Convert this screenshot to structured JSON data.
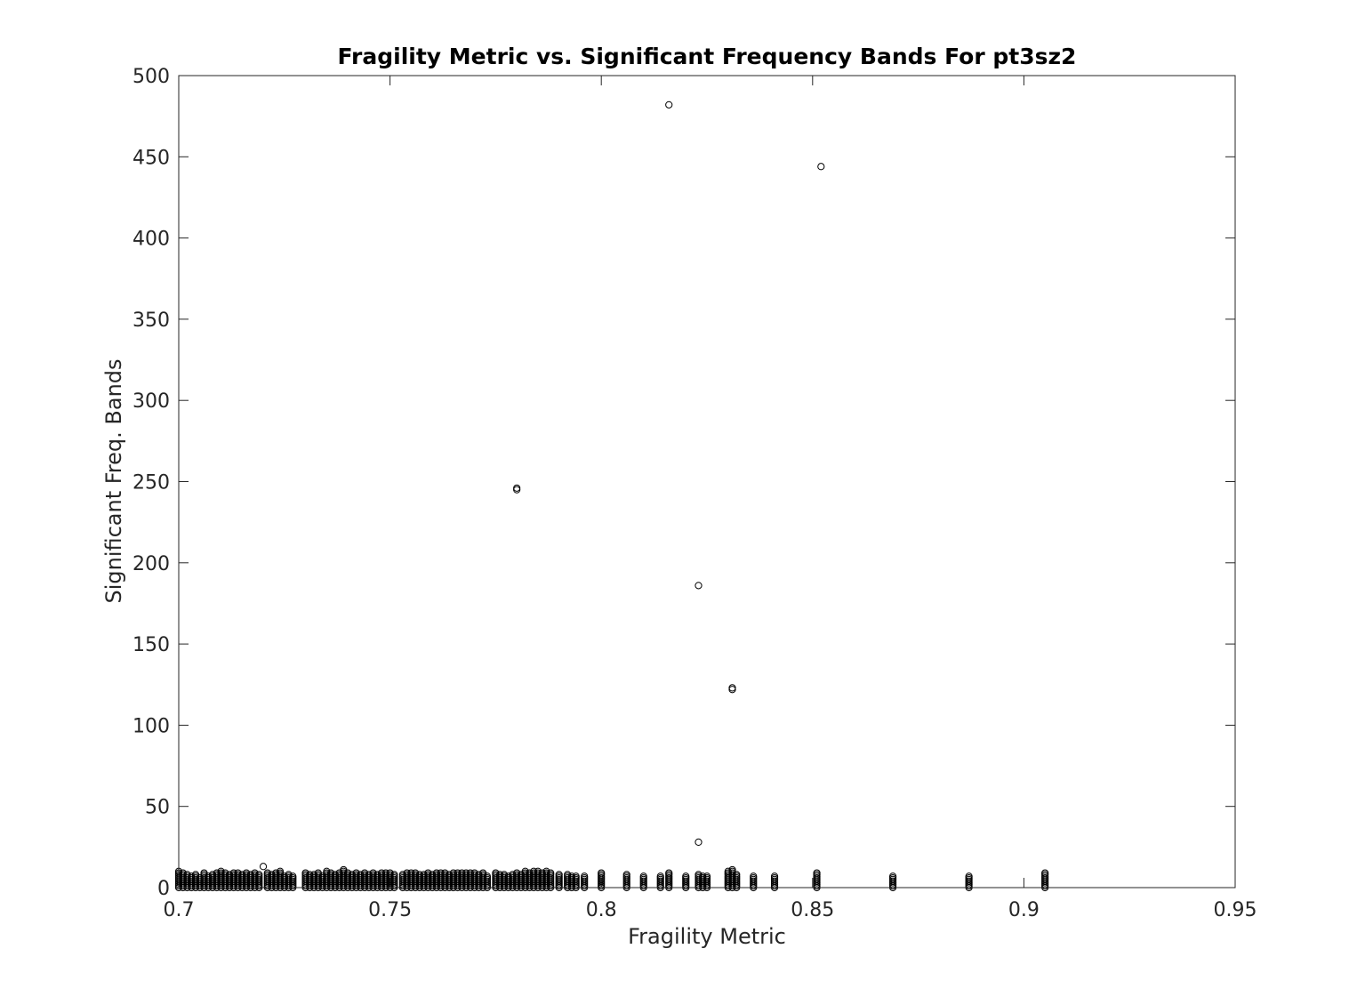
{
  "chart_data": {
    "type": "scatter",
    "title": "Fragility Metric vs. Significant Frequency Bands For pt3sz2",
    "xlabel": "Fragility Metric",
    "ylabel": "Significant Freq. Bands",
    "xlim": [
      0.7,
      0.95
    ],
    "ylim": [
      0,
      500
    ],
    "xticks": [
      0.7,
      0.75,
      0.8,
      0.85,
      0.9,
      0.95
    ],
    "xtick_labels": [
      "0.7",
      "0.75",
      "0.8",
      "0.85",
      "0.9",
      "0.95"
    ],
    "yticks": [
      0,
      50,
      100,
      150,
      200,
      250,
      300,
      350,
      400,
      450,
      500
    ],
    "ytick_labels": [
      "0",
      "50",
      "100",
      "150",
      "200",
      "250",
      "300",
      "350",
      "400",
      "450",
      "500"
    ],
    "grid": false,
    "legend": "none",
    "marker": "open-circle",
    "marker_color": "#000000",
    "outliers": [
      {
        "x": 0.816,
        "y": 482
      },
      {
        "x": 0.852,
        "y": 444
      },
      {
        "x": 0.78,
        "y": 246
      },
      {
        "x": 0.78,
        "y": 245
      },
      {
        "x": 0.823,
        "y": 186
      },
      {
        "x": 0.831,
        "y": 123
      },
      {
        "x": 0.831,
        "y": 122
      },
      {
        "x": 0.823,
        "y": 28
      },
      {
        "x": 0.72,
        "y": 13
      }
    ],
    "low_band_columns": [
      {
        "x": 0.7,
        "ymax": 10
      },
      {
        "x": 0.701,
        "ymax": 9
      },
      {
        "x": 0.702,
        "ymax": 8
      },
      {
        "x": 0.703,
        "ymax": 7
      },
      {
        "x": 0.704,
        "ymax": 8
      },
      {
        "x": 0.705,
        "ymax": 6
      },
      {
        "x": 0.706,
        "ymax": 9
      },
      {
        "x": 0.707,
        "ymax": 7
      },
      {
        "x": 0.708,
        "ymax": 8
      },
      {
        "x": 0.709,
        "ymax": 9
      },
      {
        "x": 0.71,
        "ymax": 10
      },
      {
        "x": 0.711,
        "ymax": 9
      },
      {
        "x": 0.712,
        "ymax": 8
      },
      {
        "x": 0.713,
        "ymax": 9
      },
      {
        "x": 0.714,
        "ymax": 9
      },
      {
        "x": 0.715,
        "ymax": 8
      },
      {
        "x": 0.716,
        "ymax": 9
      },
      {
        "x": 0.717,
        "ymax": 8
      },
      {
        "x": 0.718,
        "ymax": 9
      },
      {
        "x": 0.719,
        "ymax": 8
      },
      {
        "x": 0.721,
        "ymax": 9
      },
      {
        "x": 0.722,
        "ymax": 8
      },
      {
        "x": 0.723,
        "ymax": 9
      },
      {
        "x": 0.724,
        "ymax": 10
      },
      {
        "x": 0.725,
        "ymax": 7
      },
      {
        "x": 0.726,
        "ymax": 8
      },
      {
        "x": 0.727,
        "ymax": 7
      },
      {
        "x": 0.73,
        "ymax": 9
      },
      {
        "x": 0.731,
        "ymax": 8
      },
      {
        "x": 0.732,
        "ymax": 8
      },
      {
        "x": 0.733,
        "ymax": 9
      },
      {
        "x": 0.734,
        "ymax": 7
      },
      {
        "x": 0.735,
        "ymax": 10
      },
      {
        "x": 0.736,
        "ymax": 9
      },
      {
        "x": 0.737,
        "ymax": 8
      },
      {
        "x": 0.738,
        "ymax": 9
      },
      {
        "x": 0.739,
        "ymax": 11
      },
      {
        "x": 0.74,
        "ymax": 9
      },
      {
        "x": 0.741,
        "ymax": 8
      },
      {
        "x": 0.742,
        "ymax": 9
      },
      {
        "x": 0.743,
        "ymax": 8
      },
      {
        "x": 0.744,
        "ymax": 9
      },
      {
        "x": 0.745,
        "ymax": 8
      },
      {
        "x": 0.746,
        "ymax": 9
      },
      {
        "x": 0.747,
        "ymax": 8
      },
      {
        "x": 0.748,
        "ymax": 9
      },
      {
        "x": 0.749,
        "ymax": 9
      },
      {
        "x": 0.75,
        "ymax": 9
      },
      {
        "x": 0.751,
        "ymax": 8
      },
      {
        "x": 0.753,
        "ymax": 8
      },
      {
        "x": 0.754,
        "ymax": 9
      },
      {
        "x": 0.755,
        "ymax": 9
      },
      {
        "x": 0.756,
        "ymax": 9
      },
      {
        "x": 0.757,
        "ymax": 8
      },
      {
        "x": 0.758,
        "ymax": 8
      },
      {
        "x": 0.759,
        "ymax": 9
      },
      {
        "x": 0.76,
        "ymax": 8
      },
      {
        "x": 0.761,
        "ymax": 9
      },
      {
        "x": 0.762,
        "ymax": 9
      },
      {
        "x": 0.763,
        "ymax": 9
      },
      {
        "x": 0.764,
        "ymax": 8
      },
      {
        "x": 0.765,
        "ymax": 9
      },
      {
        "x": 0.766,
        "ymax": 9
      },
      {
        "x": 0.767,
        "ymax": 9
      },
      {
        "x": 0.768,
        "ymax": 9
      },
      {
        "x": 0.769,
        "ymax": 9
      },
      {
        "x": 0.77,
        "ymax": 9
      },
      {
        "x": 0.771,
        "ymax": 8
      },
      {
        "x": 0.772,
        "ymax": 9
      },
      {
        "x": 0.773,
        "ymax": 7
      },
      {
        "x": 0.775,
        "ymax": 9
      },
      {
        "x": 0.776,
        "ymax": 8
      },
      {
        "x": 0.777,
        "ymax": 8
      },
      {
        "x": 0.778,
        "ymax": 7
      },
      {
        "x": 0.779,
        "ymax": 8
      },
      {
        "x": 0.78,
        "ymax": 9
      },
      {
        "x": 0.781,
        "ymax": 8
      },
      {
        "x": 0.782,
        "ymax": 10
      },
      {
        "x": 0.783,
        "ymax": 9
      },
      {
        "x": 0.784,
        "ymax": 10
      },
      {
        "x": 0.785,
        "ymax": 10
      },
      {
        "x": 0.786,
        "ymax": 9
      },
      {
        "x": 0.787,
        "ymax": 10
      },
      {
        "x": 0.788,
        "ymax": 9
      },
      {
        "x": 0.79,
        "ymax": 8
      },
      {
        "x": 0.792,
        "ymax": 8
      },
      {
        "x": 0.793,
        "ymax": 7
      },
      {
        "x": 0.794,
        "ymax": 7
      },
      {
        "x": 0.796,
        "ymax": 7
      },
      {
        "x": 0.8,
        "ymax": 9
      },
      {
        "x": 0.806,
        "ymax": 8
      },
      {
        "x": 0.81,
        "ymax": 7
      },
      {
        "x": 0.814,
        "ymax": 7
      },
      {
        "x": 0.816,
        "ymax": 9
      },
      {
        "x": 0.82,
        "ymax": 7
      },
      {
        "x": 0.823,
        "ymax": 8
      },
      {
        "x": 0.824,
        "ymax": 7
      },
      {
        "x": 0.825,
        "ymax": 7
      },
      {
        "x": 0.83,
        "ymax": 10
      },
      {
        "x": 0.831,
        "ymax": 11
      },
      {
        "x": 0.832,
        "ymax": 8
      },
      {
        "x": 0.836,
        "ymax": 7
      },
      {
        "x": 0.841,
        "ymax": 7
      },
      {
        "x": 0.851,
        "ymax": 9
      },
      {
        "x": 0.869,
        "ymax": 7
      },
      {
        "x": 0.887,
        "ymax": 7
      },
      {
        "x": 0.905,
        "ymax": 9
      }
    ]
  }
}
